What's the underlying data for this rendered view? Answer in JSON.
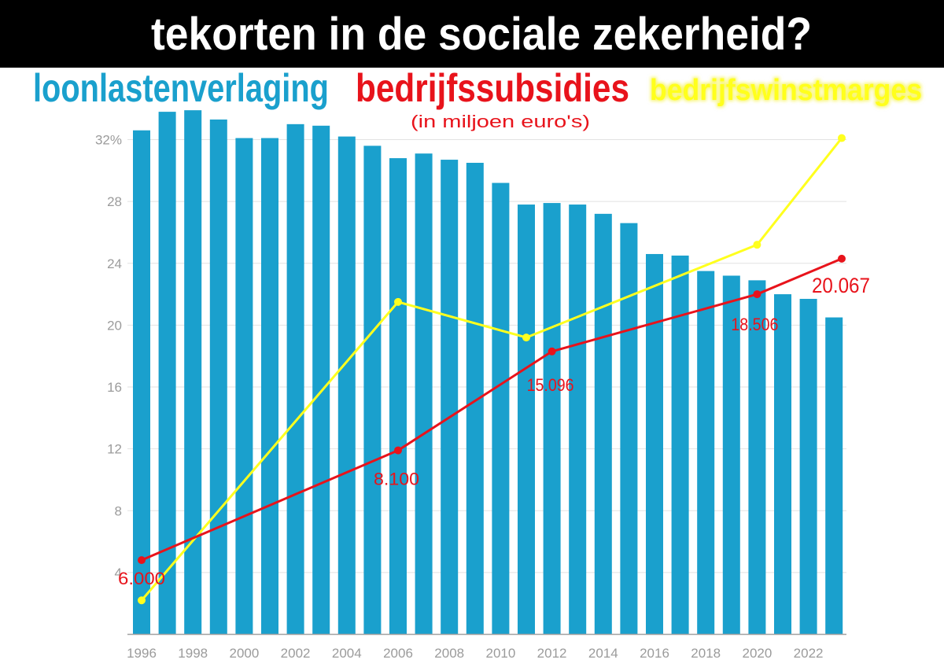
{
  "chart_data": {
    "type": "bar",
    "title": "tekorten in de sociale zekerheid?",
    "unit_note": "(in miljoen euro's)",
    "legend_placement": "top",
    "legend": [
      {
        "label": "loonlastenverlaging",
        "color": "#1aa0cd"
      },
      {
        "label": "bedrijfssubsidies",
        "color": "#e8131b"
      },
      {
        "label": "bedrijfswinstmarges",
        "color": "#ffff1e"
      }
    ],
    "grid": true,
    "x_axis": {
      "categories": [
        "1996",
        "1997",
        "1998",
        "1999",
        "2000",
        "2001",
        "2002",
        "2003",
        "2004",
        "2005",
        "2006",
        "2007",
        "2008",
        "2009",
        "2010",
        "2011",
        "2012",
        "2013",
        "2014",
        "2015",
        "2016",
        "2017",
        "2018",
        "2019",
        "2020",
        "2021",
        "2022",
        "2023"
      ],
      "tick_labels": [
        "1996",
        "1998",
        "2000",
        "2002",
        "2004",
        "2006",
        "2008",
        "2010",
        "2012",
        "2014",
        "2016",
        "2018",
        "2020",
        "2022"
      ]
    },
    "y_axis": {
      "ylim": [
        0,
        34
      ],
      "ticks": [
        {
          "value": 32,
          "label": "32%"
        },
        {
          "value": 28,
          "label": "28"
        },
        {
          "value": 24,
          "label": "24"
        },
        {
          "value": 20,
          "label": "20"
        },
        {
          "value": 16,
          "label": "16"
        },
        {
          "value": 12,
          "label": "12"
        },
        {
          "value": 8,
          "label": "8"
        },
        {
          "value": 4,
          "label": "4"
        }
      ]
    },
    "series": [
      {
        "name": "loonlastenverlaging",
        "type": "bar",
        "color": "#1aa0cd",
        "values": [
          32.6,
          33.8,
          33.9,
          33.3,
          32.1,
          32.1,
          33.0,
          32.9,
          32.2,
          31.6,
          30.8,
          31.1,
          30.7,
          30.5,
          29.2,
          27.8,
          27.9,
          27.8,
          27.2,
          26.6,
          24.6,
          24.5,
          23.5,
          23.2,
          22.9,
          22.0,
          21.7,
          20.5
        ]
      },
      {
        "name": "bedrijfssubsidies",
        "type": "line",
        "color": "#e8131b",
        "points": [
          {
            "x": 1996,
            "y": 4.8,
            "label": "6.000"
          },
          {
            "x": 2006,
            "y": 11.9,
            "label": "8.100"
          },
          {
            "x": 2012,
            "y": 18.3,
            "label": "15.096"
          },
          {
            "x": 2020,
            "y": 22.0,
            "label": "18.506"
          },
          {
            "x": 2023.3,
            "y": 24.3,
            "label": "20.067"
          }
        ]
      },
      {
        "name": "bedrijfswinstmarges",
        "type": "line",
        "color": "#ffff1e",
        "points": [
          {
            "x": 1996,
            "y": 2.2
          },
          {
            "x": 2006,
            "y": 21.5
          },
          {
            "x": 2011,
            "y": 19.2
          },
          {
            "x": 2020,
            "y": 25.2
          },
          {
            "x": 2023.3,
            "y": 32.1
          }
        ]
      }
    ]
  }
}
